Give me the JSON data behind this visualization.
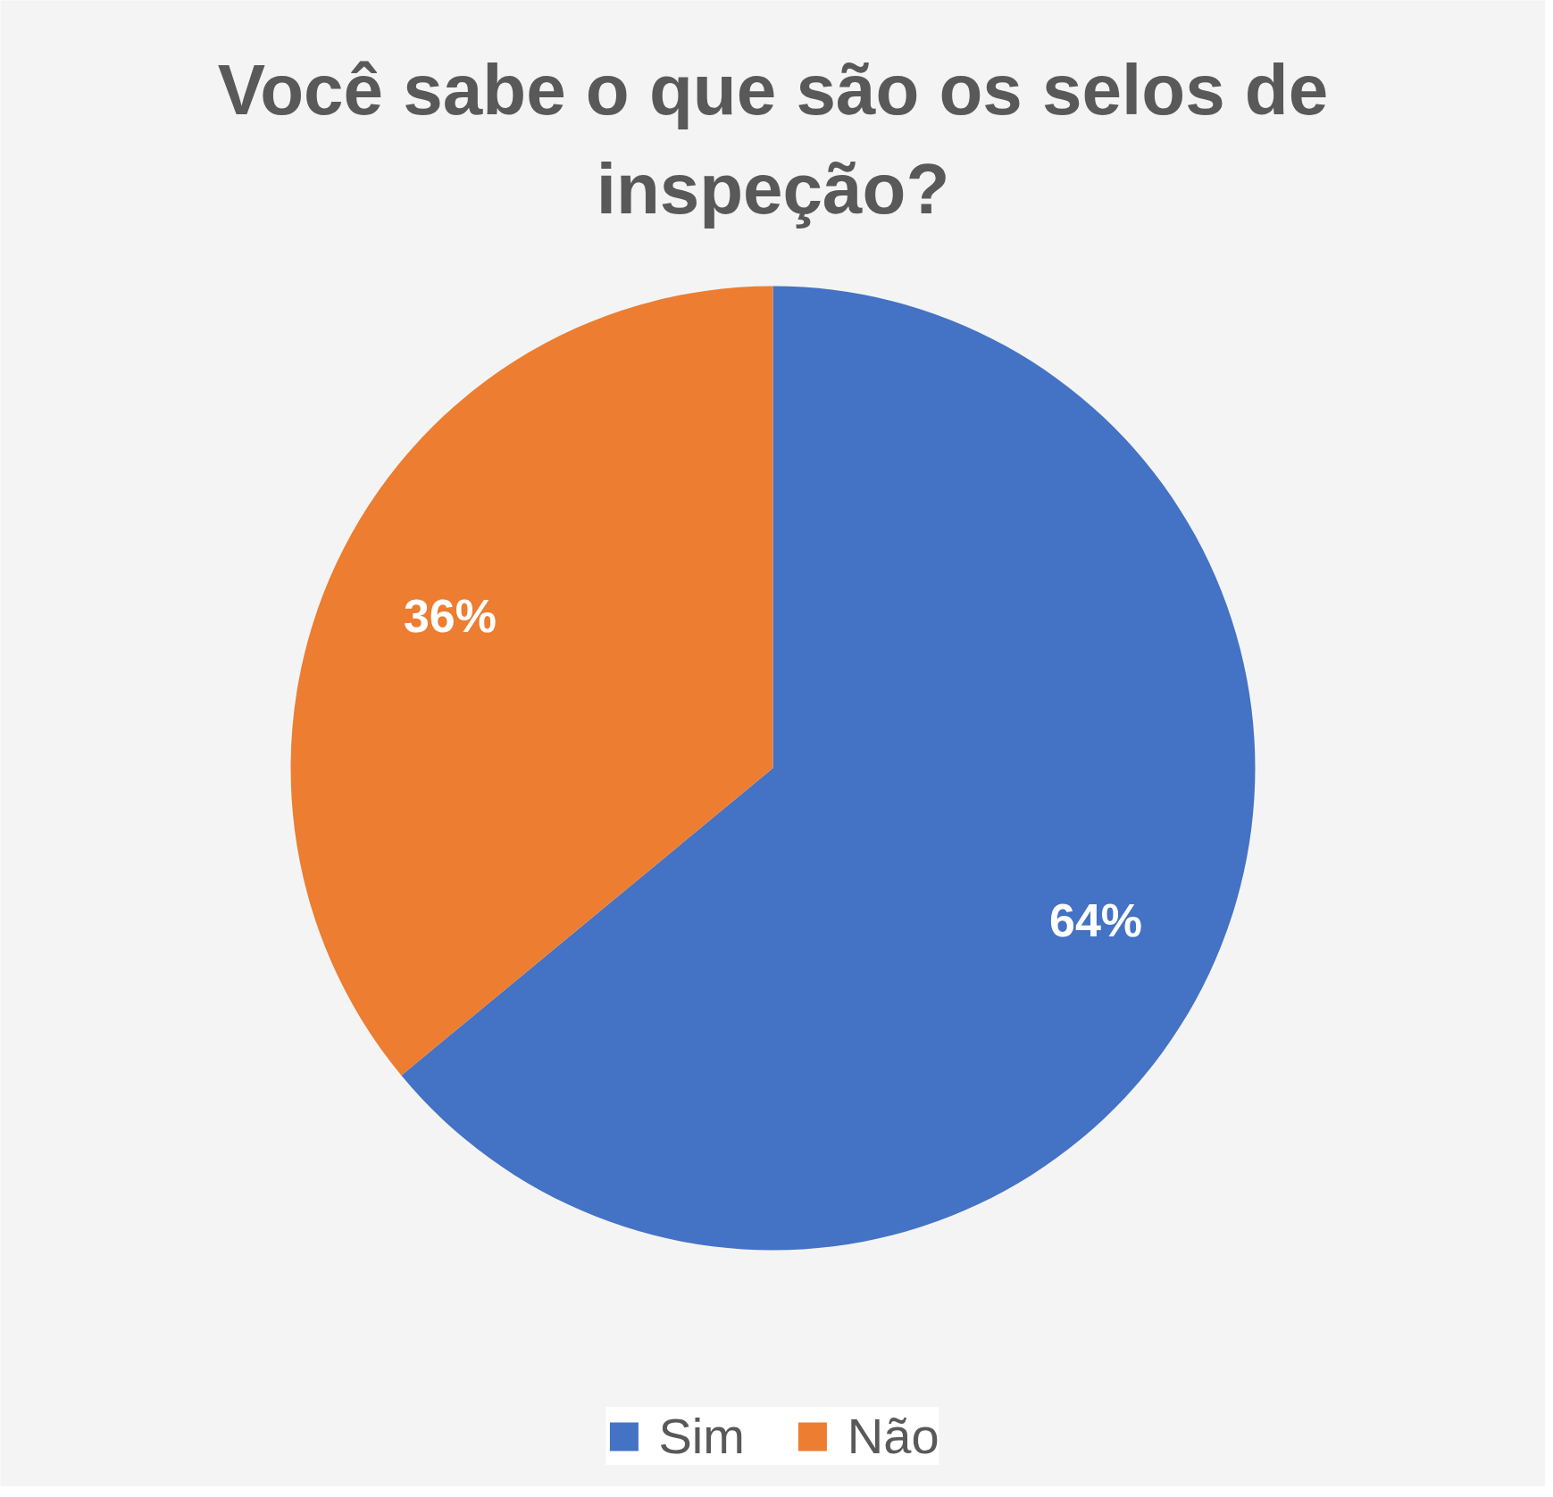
{
  "chart_data": {
    "type": "pie",
    "title": "Você sabe o que são os selos de inspeção?",
    "categories": [
      "Sim",
      "Não"
    ],
    "values": [
      64,
      36
    ],
    "colors": [
      "#4472c4",
      "#ed7d31"
    ],
    "value_labels": [
      "64%",
      "36%"
    ],
    "legend": "bottom"
  }
}
